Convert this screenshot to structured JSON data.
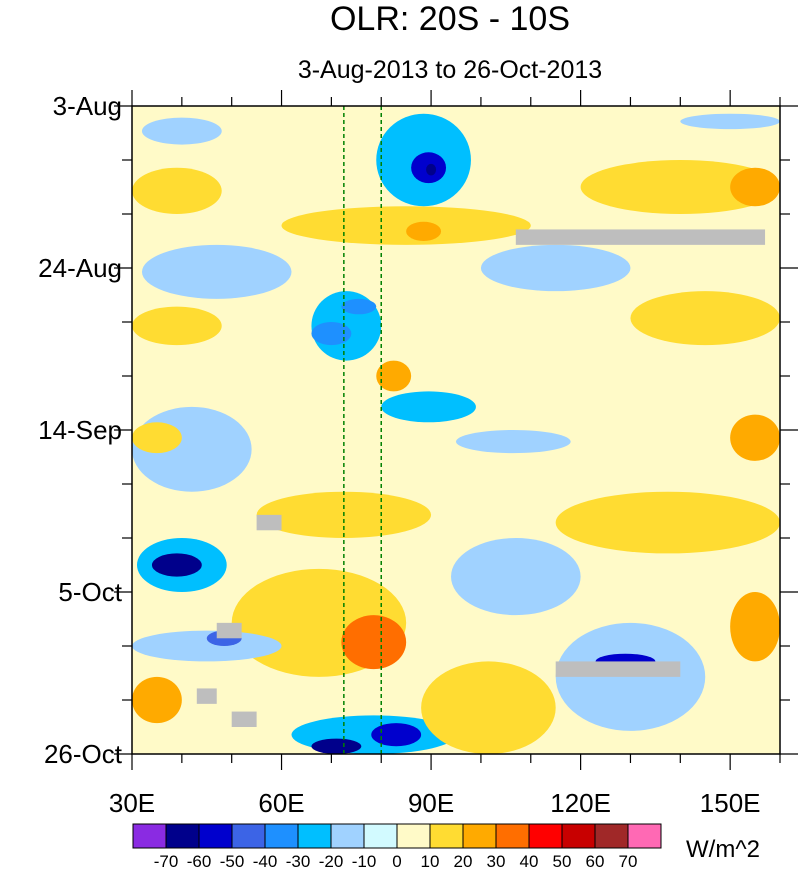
{
  "chart_data": {
    "type": "heatmap",
    "title": "OLR: 20S - 10S",
    "subtitle": "3-Aug-2013 to 26-Oct-2013",
    "x_axis": {
      "range": [
        30,
        160
      ],
      "ticks": [
        {
          "value": 30,
          "label": "30E"
        },
        {
          "value": 60,
          "label": "60E"
        },
        {
          "value": 90,
          "label": "90E"
        },
        {
          "value": 120,
          "label": "120E"
        },
        {
          "value": 150,
          "label": "150E"
        }
      ],
      "minor_step": 10
    },
    "y_axis": {
      "range_days": [
        0,
        84
      ],
      "direction": "downward",
      "ticks": [
        {
          "day": 0,
          "label": "3-Aug"
        },
        {
          "day": 21,
          "label": "24-Aug"
        },
        {
          "day": 42,
          "label": "14-Sep"
        },
        {
          "day": 63,
          "label": "5-Oct"
        },
        {
          "day": 84,
          "label": "26-Oct"
        }
      ],
      "minor_step_days": 7
    },
    "reference_lines_lon": [
      72.5,
      80
    ],
    "colorbar": {
      "unit_label": "W/m^2",
      "levels": [
        -70,
        -60,
        -50,
        -40,
        -30,
        -20,
        -10,
        0,
        10,
        20,
        30,
        40,
        50,
        60,
        70
      ],
      "colors": [
        "#8a2be2",
        "#00008b",
        "#0000cd",
        "#3c64e6",
        "#1e90ff",
        "#00bfff",
        "#a0d2ff",
        "#d2faff",
        "#fffac8",
        "#ffdc32",
        "#ffaa00",
        "#ff6e00",
        "#ff0000",
        "#c80000",
        "#a02828",
        "#ff69b4"
      ],
      "tick_labels": [
        "-70",
        "-60",
        "-50",
        "-40",
        "-30",
        "-20",
        "-10",
        "0",
        "10",
        "20",
        "30",
        "40",
        "50",
        "60",
        "70"
      ]
    },
    "background_anomaly_band": "0 to 10",
    "features": [
      {
        "lon": [
          32,
          48
        ],
        "day": [
          1.5,
          5
        ],
        "anom": -20
      },
      {
        "lon": [
          79,
          98
        ],
        "day": [
          1,
          13
        ],
        "anom": -25
      },
      {
        "lon": [
          86,
          93
        ],
        "day": [
          6,
          10
        ],
        "anom": -55
      },
      {
        "lon": [
          89,
          91
        ],
        "day": [
          7.5,
          9
        ],
        "anom": -70
      },
      {
        "lon": [
          140,
          160
        ],
        "day": [
          1,
          3
        ],
        "anom": -15
      },
      {
        "lon": [
          30,
          48
        ],
        "day": [
          8,
          14
        ],
        "anom": 15
      },
      {
        "lon": [
          120,
          160
        ],
        "day": [
          7,
          14
        ],
        "anom": 12
      },
      {
        "lon": [
          150,
          160
        ],
        "day": [
          8,
          13
        ],
        "anom": 25
      },
      {
        "lon": [
          60,
          110
        ],
        "day": [
          13,
          18
        ],
        "anom": 15
      },
      {
        "lon": [
          85,
          92
        ],
        "day": [
          15,
          17.5
        ],
        "anom": 25
      },
      {
        "lon": [
          100,
          130
        ],
        "day": [
          18,
          24
        ],
        "anom": -12
      },
      {
        "lon": [
          32,
          62
        ],
        "day": [
          18,
          25
        ],
        "anom": -12
      },
      {
        "lon": [
          66,
          80
        ],
        "day": [
          24,
          33
        ],
        "anom": -25
      },
      {
        "lon": [
          72,
          79
        ],
        "day": [
          25,
          27
        ],
        "anom": -35
      },
      {
        "lon": [
          66,
          74
        ],
        "day": [
          28,
          31
        ],
        "anom": -40
      },
      {
        "lon": [
          30,
          48
        ],
        "day": [
          26,
          31
        ],
        "anom": 15
      },
      {
        "lon": [
          130,
          160
        ],
        "day": [
          24,
          31
        ],
        "anom": 15
      },
      {
        "lon": [
          79,
          86
        ],
        "day": [
          33,
          37
        ],
        "anom": 25
      },
      {
        "lon": [
          80,
          99
        ],
        "day": [
          37,
          41
        ],
        "anom": -25
      },
      {
        "lon": [
          95,
          118
        ],
        "day": [
          42,
          45
        ],
        "anom": -15
      },
      {
        "lon": [
          30,
          54
        ],
        "day": [
          39,
          50
        ],
        "anom": -12
      },
      {
        "lon": [
          30,
          40
        ],
        "day": [
          41,
          45
        ],
        "anom": 15
      },
      {
        "lon": [
          150,
          160
        ],
        "day": [
          40,
          46
        ],
        "anom": 25
      },
      {
        "lon": [
          55,
          90
        ],
        "day": [
          50,
          56
        ],
        "anom": 15
      },
      {
        "lon": [
          31,
          49
        ],
        "day": [
          56,
          63
        ],
        "anom": -30
      },
      {
        "lon": [
          34,
          44
        ],
        "day": [
          58,
          61
        ],
        "anom": -65
      },
      {
        "lon": [
          94,
          120
        ],
        "day": [
          56,
          66
        ],
        "anom": -12
      },
      {
        "lon": [
          115,
          160
        ],
        "day": [
          50,
          58
        ],
        "anom": 12
      },
      {
        "lon": [
          50,
          85
        ],
        "day": [
          60,
          74
        ],
        "anom": 18
      },
      {
        "lon": [
          72,
          85
        ],
        "day": [
          66,
          73
        ],
        "anom": 30
      },
      {
        "lon": [
          30,
          60
        ],
        "day": [
          68,
          72
        ],
        "anom": -15
      },
      {
        "lon": [
          45,
          52
        ],
        "day": [
          68,
          70
        ],
        "anom": -50
      },
      {
        "lon": [
          115,
          145
        ],
        "day": [
          67,
          81
        ],
        "anom": -20
      },
      {
        "lon": [
          123,
          135
        ],
        "day": [
          71,
          73
        ],
        "anom": -55
      },
      {
        "lon": [
          30,
          40
        ],
        "day": [
          74,
          80
        ],
        "anom": 25
      },
      {
        "lon": [
          150,
          160
        ],
        "day": [
          63,
          72
        ],
        "anom": 25
      },
      {
        "lon": [
          62,
          95
        ],
        "day": [
          79,
          84
        ],
        "anom": -30
      },
      {
        "lon": [
          78,
          88
        ],
        "day": [
          80,
          83
        ],
        "anom": -60
      },
      {
        "lon": [
          66,
          76
        ],
        "day": [
          82,
          84
        ],
        "anom": -65
      },
      {
        "lon": [
          88,
          115
        ],
        "day": [
          72,
          84
        ],
        "anom": 15
      }
    ],
    "missing_data": [
      {
        "lon": [
          107,
          157
        ],
        "day": [
          16,
          18
        ]
      },
      {
        "lon": [
          55,
          60
        ],
        "day": [
          53,
          55
        ]
      },
      {
        "lon": [
          47,
          52
        ],
        "day": [
          67,
          69
        ]
      },
      {
        "lon": [
          115,
          140
        ],
        "day": [
          72,
          74
        ]
      },
      {
        "lon": [
          43,
          47
        ],
        "day": [
          75.5,
          77.5
        ]
      },
      {
        "lon": [
          50,
          55
        ],
        "day": [
          78.5,
          80.5
        ]
      }
    ],
    "missing_color": "#bebebe"
  }
}
